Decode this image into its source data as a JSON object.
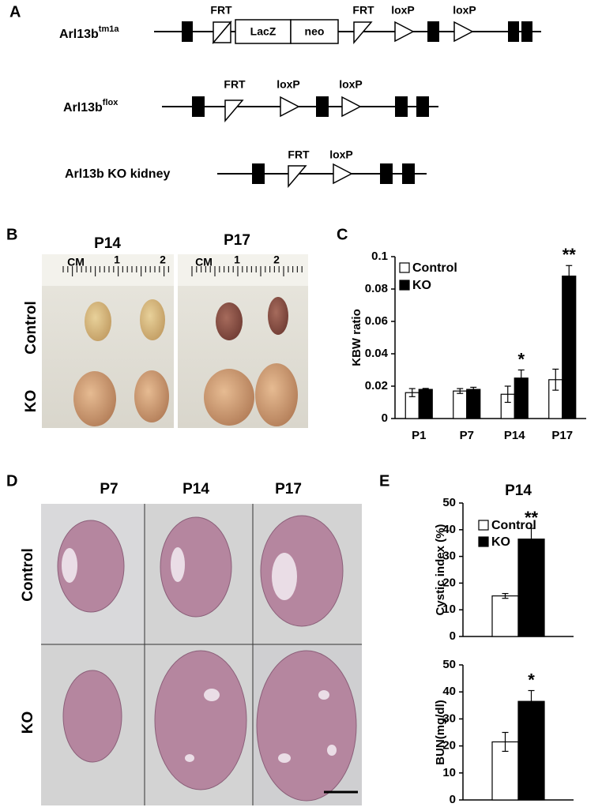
{
  "panel_labels": [
    "A",
    "B",
    "C",
    "D",
    "E"
  ],
  "gene_diagram": {
    "constructs": [
      {
        "name": "Arl13b",
        "superscript": "tm1a",
        "elements": [
          "FRT",
          "FRT",
          "loxP",
          "loxP"
        ],
        "cassettes": [
          "LacZ",
          "neo"
        ]
      },
      {
        "name": "Arl13b",
        "superscript": "flox",
        "elements": [
          "FRT",
          "loxP",
          "loxP"
        ]
      },
      {
        "name": "Arl13b KO kidney",
        "elements": [
          "FRT",
          "loxP"
        ]
      }
    ]
  },
  "photo_panel": {
    "timepoints": [
      "P14",
      "P17"
    ],
    "rows": [
      "Control",
      "KO"
    ],
    "ruler": {
      "unit": "CM",
      "marks": [
        "1",
        "2"
      ]
    }
  },
  "histology_panel": {
    "timepoints": [
      "P7",
      "P14",
      "P17"
    ],
    "rows": [
      "Control",
      "KO"
    ]
  },
  "chart_data": [
    {
      "type": "bar",
      "ylabel": "KBW ratio",
      "categories": [
        "P1",
        "P7",
        "P14",
        "P17"
      ],
      "series": [
        {
          "name": "Control",
          "color": "#ffffff",
          "values": [
            0.016,
            0.017,
            0.015,
            0.024
          ],
          "errors": [
            0.0025,
            0.0015,
            0.005,
            0.0065
          ]
        },
        {
          "name": "KO",
          "color": "#000000",
          "values": [
            0.018,
            0.018,
            0.025,
            0.088
          ],
          "errors": [
            0.0006,
            0.0013,
            0.005,
            0.0065
          ]
        }
      ],
      "ylim": [
        0,
        0.1
      ],
      "yticks": [
        0,
        0.02,
        0.04,
        0.06,
        0.08,
        0.1
      ],
      "annotations": [
        "*",
        "**"
      ]
    },
    {
      "type": "bar",
      "title": "P14",
      "ylabel": "Cystic index (%)",
      "series": [
        {
          "name": "Control",
          "color": "#ffffff",
          "values": [
            15.2
          ],
          "errors": [
            0.9
          ]
        },
        {
          "name": "KO",
          "color": "#000000",
          "values": [
            36.5
          ],
          "errors": [
            4
          ]
        }
      ],
      "ylim": [
        0,
        50
      ],
      "yticks": [
        0,
        10,
        20,
        30,
        40,
        50
      ],
      "annotations": [
        "**"
      ]
    },
    {
      "type": "bar",
      "ylabel": "BUN(mg/dl)",
      "series": [
        {
          "color": "#ffffff",
          "values": [
            21.5
          ],
          "errors": [
            3.5
          ]
        },
        {
          "color": "#000000",
          "values": [
            36.5
          ],
          "errors": [
            4
          ]
        }
      ],
      "ylim": [
        0,
        50
      ],
      "yticks": [
        0,
        10,
        20,
        30,
        40,
        50
      ],
      "annotations": [
        "*"
      ]
    }
  ]
}
